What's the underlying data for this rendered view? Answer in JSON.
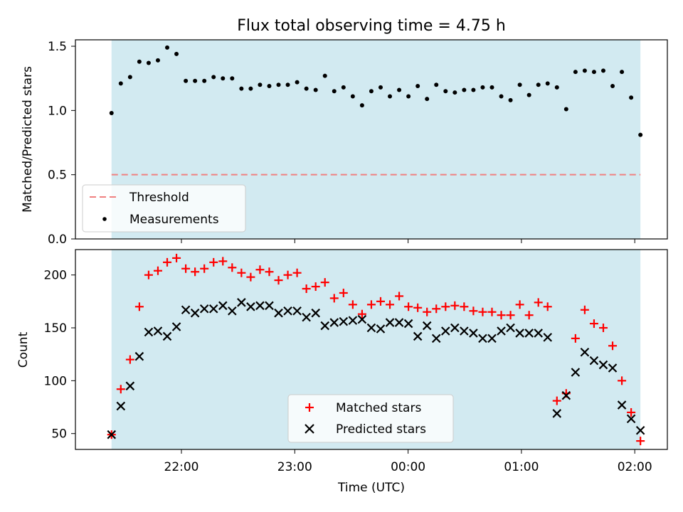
{
  "title": "Flux total observing time = 4.75 h",
  "colors": {
    "shade": "#add8e6",
    "threshold": "#f08080",
    "matched": "#ff0000",
    "predicted": "#000000"
  },
  "chart_data": [
    {
      "type": "scatter",
      "ylabel": "Matched/Predicted stars",
      "ylim": [
        0,
        1.55
      ],
      "yticks": [
        0.0,
        0.5,
        1.0,
        1.5
      ],
      "ytick_labels": [
        "0.0",
        "0.5",
        "1.0",
        "1.5"
      ],
      "threshold": 0.5,
      "legend_position": "lower-left",
      "legend": [
        "Threshold",
        "Measurements"
      ],
      "series": [
        {
          "name": "Measurements",
          "y": [
            0.98,
            1.21,
            1.26,
            1.38,
            1.37,
            1.39,
            1.49,
            1.44,
            1.23,
            1.23,
            1.23,
            1.26,
            1.25,
            1.25,
            1.17,
            1.17,
            1.2,
            1.19,
            1.2,
            1.2,
            1.22,
            1.17,
            1.16,
            1.27,
            1.15,
            1.18,
            1.11,
            1.04,
            1.15,
            1.18,
            1.11,
            1.16,
            1.11,
            1.19,
            1.09,
            1.2,
            1.15,
            1.14,
            1.16,
            1.16,
            1.18,
            1.18,
            1.11,
            1.08,
            1.2,
            1.12,
            1.2,
            1.21,
            1.18,
            1.01,
            1.3,
            1.31,
            1.3,
            1.31,
            1.19,
            1.3,
            1.1,
            0.81
          ]
        }
      ]
    },
    {
      "type": "scatter",
      "xlabel": "Time (UTC)",
      "ylabel": "Count",
      "ylim": [
        35,
        224
      ],
      "yticks": [
        50,
        100,
        150,
        200
      ],
      "ytick_labels": [
        "50",
        "100",
        "150",
        "200"
      ],
      "x_start": "21:23",
      "x_end": "02:03",
      "xticks": [
        "22:00",
        "23:00",
        "00:00",
        "01:00",
        "02:00"
      ],
      "legend_position": "lower-center",
      "legend": [
        "Matched stars",
        "Predicted stars"
      ],
      "series": [
        {
          "name": "Matched stars",
          "y": [
            49,
            92,
            120,
            170,
            200,
            204,
            212,
            216,
            206,
            203,
            206,
            212,
            213,
            207,
            202,
            198,
            205,
            203,
            195,
            200,
            202,
            187,
            189,
            193,
            178,
            183,
            172,
            163,
            172,
            175,
            172,
            180,
            170,
            169,
            165,
            168,
            170,
            171,
            170,
            166,
            165,
            165,
            162,
            162,
            172,
            162,
            174,
            170,
            81,
            88,
            140,
            167,
            154,
            150,
            133,
            100,
            70,
            43
          ]
        },
        {
          "name": "Predicted stars",
          "y": [
            49,
            76,
            95,
            123,
            146,
            147,
            142,
            151,
            167,
            164,
            168,
            168,
            171,
            166,
            174,
            170,
            171,
            171,
            164,
            166,
            166,
            160,
            164,
            152,
            155,
            156,
            157,
            158,
            150,
            149,
            155,
            155,
            154,
            142,
            152,
            140,
            147,
            150,
            147,
            145,
            140,
            140,
            147,
            150,
            145,
            145,
            145,
            141,
            69,
            86,
            108,
            127,
            119,
            115,
            112,
            77,
            64,
            53
          ]
        }
      ]
    }
  ]
}
